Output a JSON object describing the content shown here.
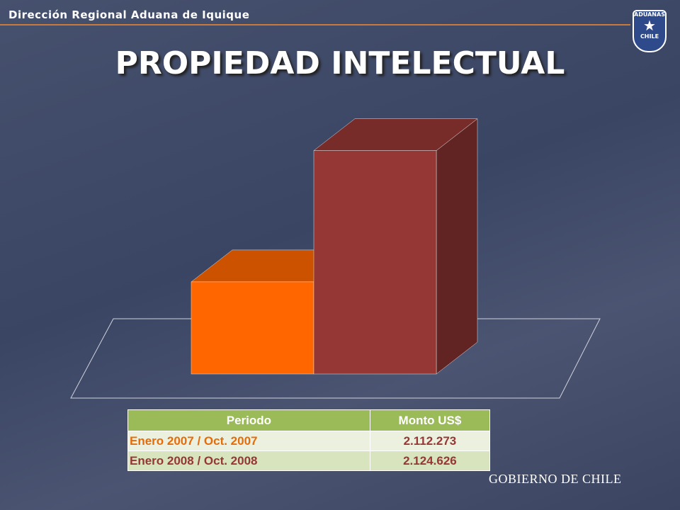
{
  "header": {
    "organization": "Dirección Regional Aduana de Iquique",
    "badge_top": "ADUANAS",
    "badge_bottom": "CHILE"
  },
  "chart_data": {
    "type": "bar",
    "title": "PROPIEDAD INTELECTUAL",
    "categories": [
      null,
      null
    ],
    "values": [
      2112273,
      2124626
    ],
    "colors": [
      "#ff6600",
      "#953735"
    ],
    "ylim": [
      2103600,
      2125600
    ]
  },
  "table": {
    "columns": [
      "Periodo",
      "Monto US$"
    ],
    "rows": [
      [
        "Enero 2007 / Oct. 2007",
        "2.112.273"
      ],
      [
        "Enero 2008 / Oct. 2008",
        "2.124.626"
      ]
    ]
  },
  "footer": "GOBIERNO DE CHILE"
}
